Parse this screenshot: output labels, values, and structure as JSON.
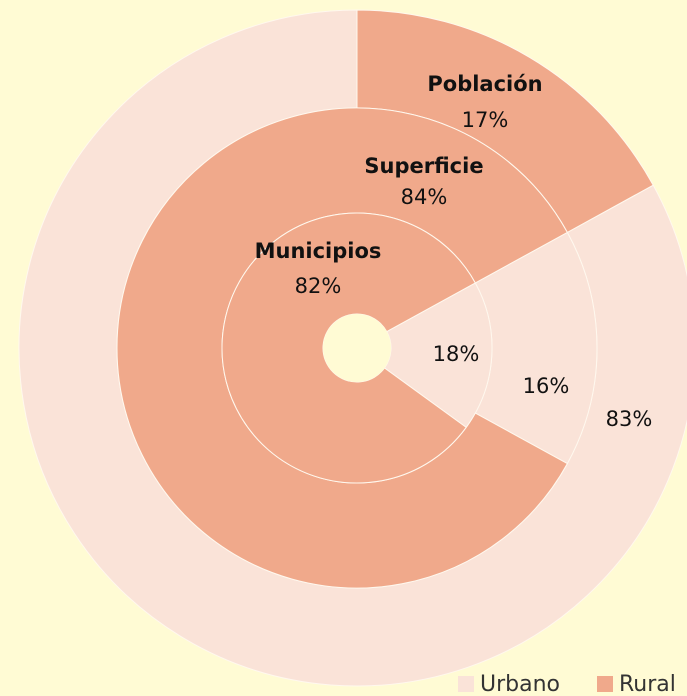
{
  "chart_data": {
    "type": "donut",
    "categories": [
      "Municipios",
      "Superficie",
      "Población"
    ],
    "series": [
      {
        "name": "Urbano",
        "color": "#fae3d8",
        "values": [
          18,
          16,
          83
        ],
        "value_labels": [
          "18%",
          "16%",
          "83%"
        ]
      },
      {
        "name": "Rural",
        "color": "#f0a98b",
        "values": [
          82,
          84,
          17
        ],
        "value_labels": [
          "82%",
          "84%",
          "17%"
        ]
      }
    ],
    "legend": "bottom-right"
  }
}
